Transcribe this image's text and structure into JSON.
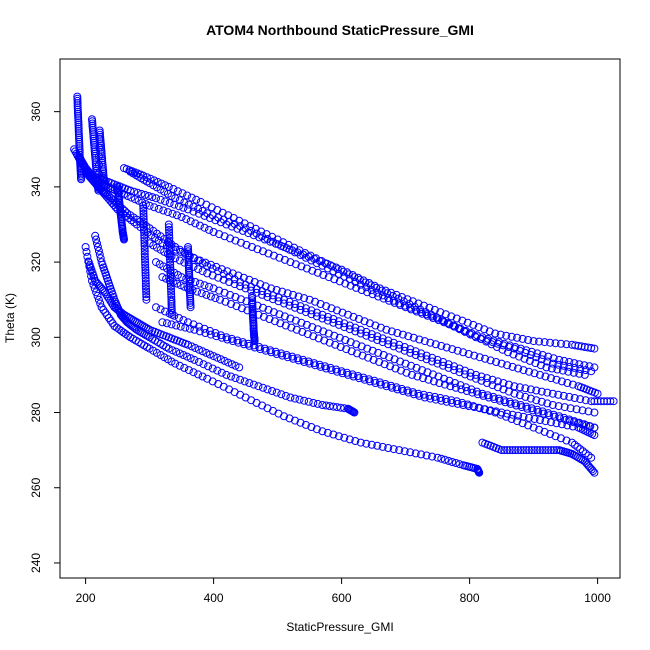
{
  "chart_data": {
    "type": "scatter",
    "title": "ATOM4 Northbound StaticPressure_GMI",
    "xlabel": "StaticPressure_GMI",
    "ylabel": "Theta (K)",
    "xlim": [
      160,
      1035
    ],
    "ylim": [
      236,
      374
    ],
    "x_ticks": [
      200,
      400,
      600,
      800,
      1000
    ],
    "y_ticks": [
      240,
      260,
      280,
      300,
      320,
      340,
      360
    ],
    "x_tick_labels": [
      "200",
      "400",
      "600",
      "800",
      "1000"
    ],
    "y_tick_labels": [
      "240",
      "260",
      "280",
      "300",
      "320",
      "340",
      "360"
    ],
    "grid": false,
    "legend": "none",
    "marker": "open-circle",
    "point_color": "#0000ff",
    "series": [
      {
        "x": [
          182,
          195,
          210,
          240,
          270,
          310,
          360,
          420,
          480,
          540,
          600,
          660,
          720,
          780,
          840,
          900,
          960,
          995
        ],
        "y": [
          350,
          346,
          343,
          341,
          339,
          337,
          334,
          330,
          326,
          322,
          318,
          313,
          309,
          305,
          301,
          299,
          298,
          297
        ]
      },
      {
        "x": [
          190,
          200,
          215,
          235,
          260,
          300,
          350,
          400,
          460,
          520,
          580,
          640,
          700,
          760,
          820,
          880,
          940,
          995
        ],
        "y": [
          348,
          345,
          342,
          340,
          338,
          335,
          332,
          328,
          324,
          320,
          316,
          312,
          308,
          304,
          300,
          297,
          294,
          292
        ]
      },
      {
        "x": [
          200,
          215,
          230,
          250,
          280,
          320,
          370,
          430,
          490,
          550,
          610,
          670,
          730,
          790,
          850,
          910,
          970,
          1000
        ],
        "y": [
          344,
          341,
          338,
          334,
          330,
          325,
          321,
          317,
          313,
          310,
          306,
          302,
          299,
          296,
          293,
          290,
          287,
          285
        ]
      },
      {
        "x": [
          205,
          220,
          240,
          265,
          300,
          340,
          390,
          450,
          510,
          570,
          630,
          690,
          750,
          810,
          870,
          930,
          990,
          1025
        ],
        "y": [
          343,
          340,
          337,
          333,
          329,
          324,
          319,
          314,
          310,
          306,
          302,
          298,
          294,
          290,
          287,
          285,
          283,
          283
        ]
      },
      {
        "x": [
          260,
          290,
          330,
          380,
          440,
          500,
          560,
          620,
          680,
          740,
          800,
          860,
          920,
          980
        ],
        "y": [
          345,
          343,
          340,
          336,
          331,
          326,
          321,
          316,
          311,
          306,
          301,
          296,
          292,
          290
        ]
      },
      {
        "x": [
          270,
          300,
          340,
          390,
          450,
          510,
          570,
          630,
          690,
          750,
          810,
          870,
          930,
          990
        ],
        "y": [
          344,
          341,
          337,
          333,
          329,
          324,
          319,
          314,
          309,
          305,
          300,
          297,
          293,
          291
        ]
      },
      {
        "x": [
          300,
          340,
          390,
          450,
          510,
          570,
          630,
          690,
          750,
          810,
          870,
          930,
          995
        ],
        "y": [
          325,
          321,
          317,
          313,
          309,
          305,
          301,
          297,
          293,
          289,
          285,
          282,
          280
        ]
      },
      {
        "x": [
          310,
          350,
          400,
          460,
          520,
          580,
          640,
          700,
          760,
          820,
          880,
          940,
          995
        ],
        "y": [
          320,
          316,
          313,
          309,
          305,
          301,
          297,
          293,
          289,
          285,
          282,
          279,
          276
        ]
      },
      {
        "x": [
          320,
          360,
          410,
          470,
          530,
          590,
          650,
          710,
          770,
          830,
          890,
          950,
          995
        ],
        "y": [
          316,
          313,
          310,
          306,
          302,
          298,
          294,
          290,
          287,
          284,
          281,
          278,
          276
        ]
      },
      {
        "x": [
          310,
          360,
          420,
          480,
          540,
          600,
          660,
          720,
          780,
          840,
          900,
          960,
          990
        ],
        "y": [
          308,
          304,
          300,
          297,
          294,
          291,
          288,
          285,
          283,
          280,
          276,
          272,
          268
        ]
      },
      {
        "x": [
          320,
          370,
          430,
          490,
          550,
          610,
          670,
          730,
          790,
          850,
          910,
          970,
          995
        ],
        "y": [
          304,
          302,
          299,
          296,
          293,
          290,
          287,
          284,
          282,
          280,
          278,
          276,
          274
        ]
      },
      {
        "x": [
          215,
          225,
          235,
          245,
          255,
          265,
          280,
          300,
          330,
          370,
          420,
          470,
          520,
          570,
          610,
          620
        ],
        "y": [
          327,
          320,
          315,
          310,
          306,
          304,
          302,
          300,
          297,
          294,
          290,
          287,
          284,
          282,
          281,
          280
        ]
      },
      {
        "x": [
          205,
          215,
          230,
          245,
          260,
          280,
          300,
          330,
          360,
          400,
          440
        ],
        "y": [
          320,
          315,
          312,
          308,
          306,
          304,
          302,
          300,
          298,
          295,
          292
        ]
      },
      {
        "x": [
          200,
          210,
          225,
          245,
          270,
          300,
          340,
          390,
          450,
          510,
          570,
          630,
          690,
          750,
          790,
          812,
          815
        ],
        "y": [
          324,
          315,
          308,
          303,
          300,
          297,
          293,
          289,
          284,
          279,
          275,
          272,
          270,
          268,
          266,
          265,
          264
        ]
      },
      {
        "x": [
          820,
          850,
          880,
          910,
          940,
          960,
          980,
          995
        ],
        "y": [
          272,
          270,
          270,
          270,
          270,
          269,
          267,
          264
        ]
      },
      {
        "x": [
          187,
          188,
          189,
          190,
          191,
          192,
          193
        ],
        "y": [
          364,
          360,
          356,
          352,
          348,
          345,
          342
        ]
      },
      {
        "x": [
          210,
          212,
          214,
          216,
          218,
          220,
          222,
          224,
          226,
          228,
          230
        ],
        "y": [
          358,
          354,
          350,
          346,
          342,
          339,
          355,
          351,
          347,
          343,
          340
        ]
      },
      {
        "x": [
          250,
          252,
          254,
          256,
          258,
          260
        ],
        "y": [
          340,
          337,
          334,
          331,
          328,
          326
        ]
      },
      {
        "x": [
          290,
          291,
          292,
          293,
          294,
          295
        ],
        "y": [
          335,
          330,
          325,
          320,
          315,
          310
        ]
      },
      {
        "x": [
          330,
          331,
          332,
          333,
          334,
          335
        ],
        "y": [
          330,
          325,
          320,
          315,
          310,
          306
        ]
      },
      {
        "x": [
          360,
          361,
          362,
          363,
          364
        ],
        "y": [
          324,
          320,
          316,
          312,
          308
        ]
      },
      {
        "x": [
          460,
          461,
          462,
          463,
          464
        ],
        "y": [
          311,
          307,
          304,
          301,
          299
        ]
      }
    ]
  }
}
